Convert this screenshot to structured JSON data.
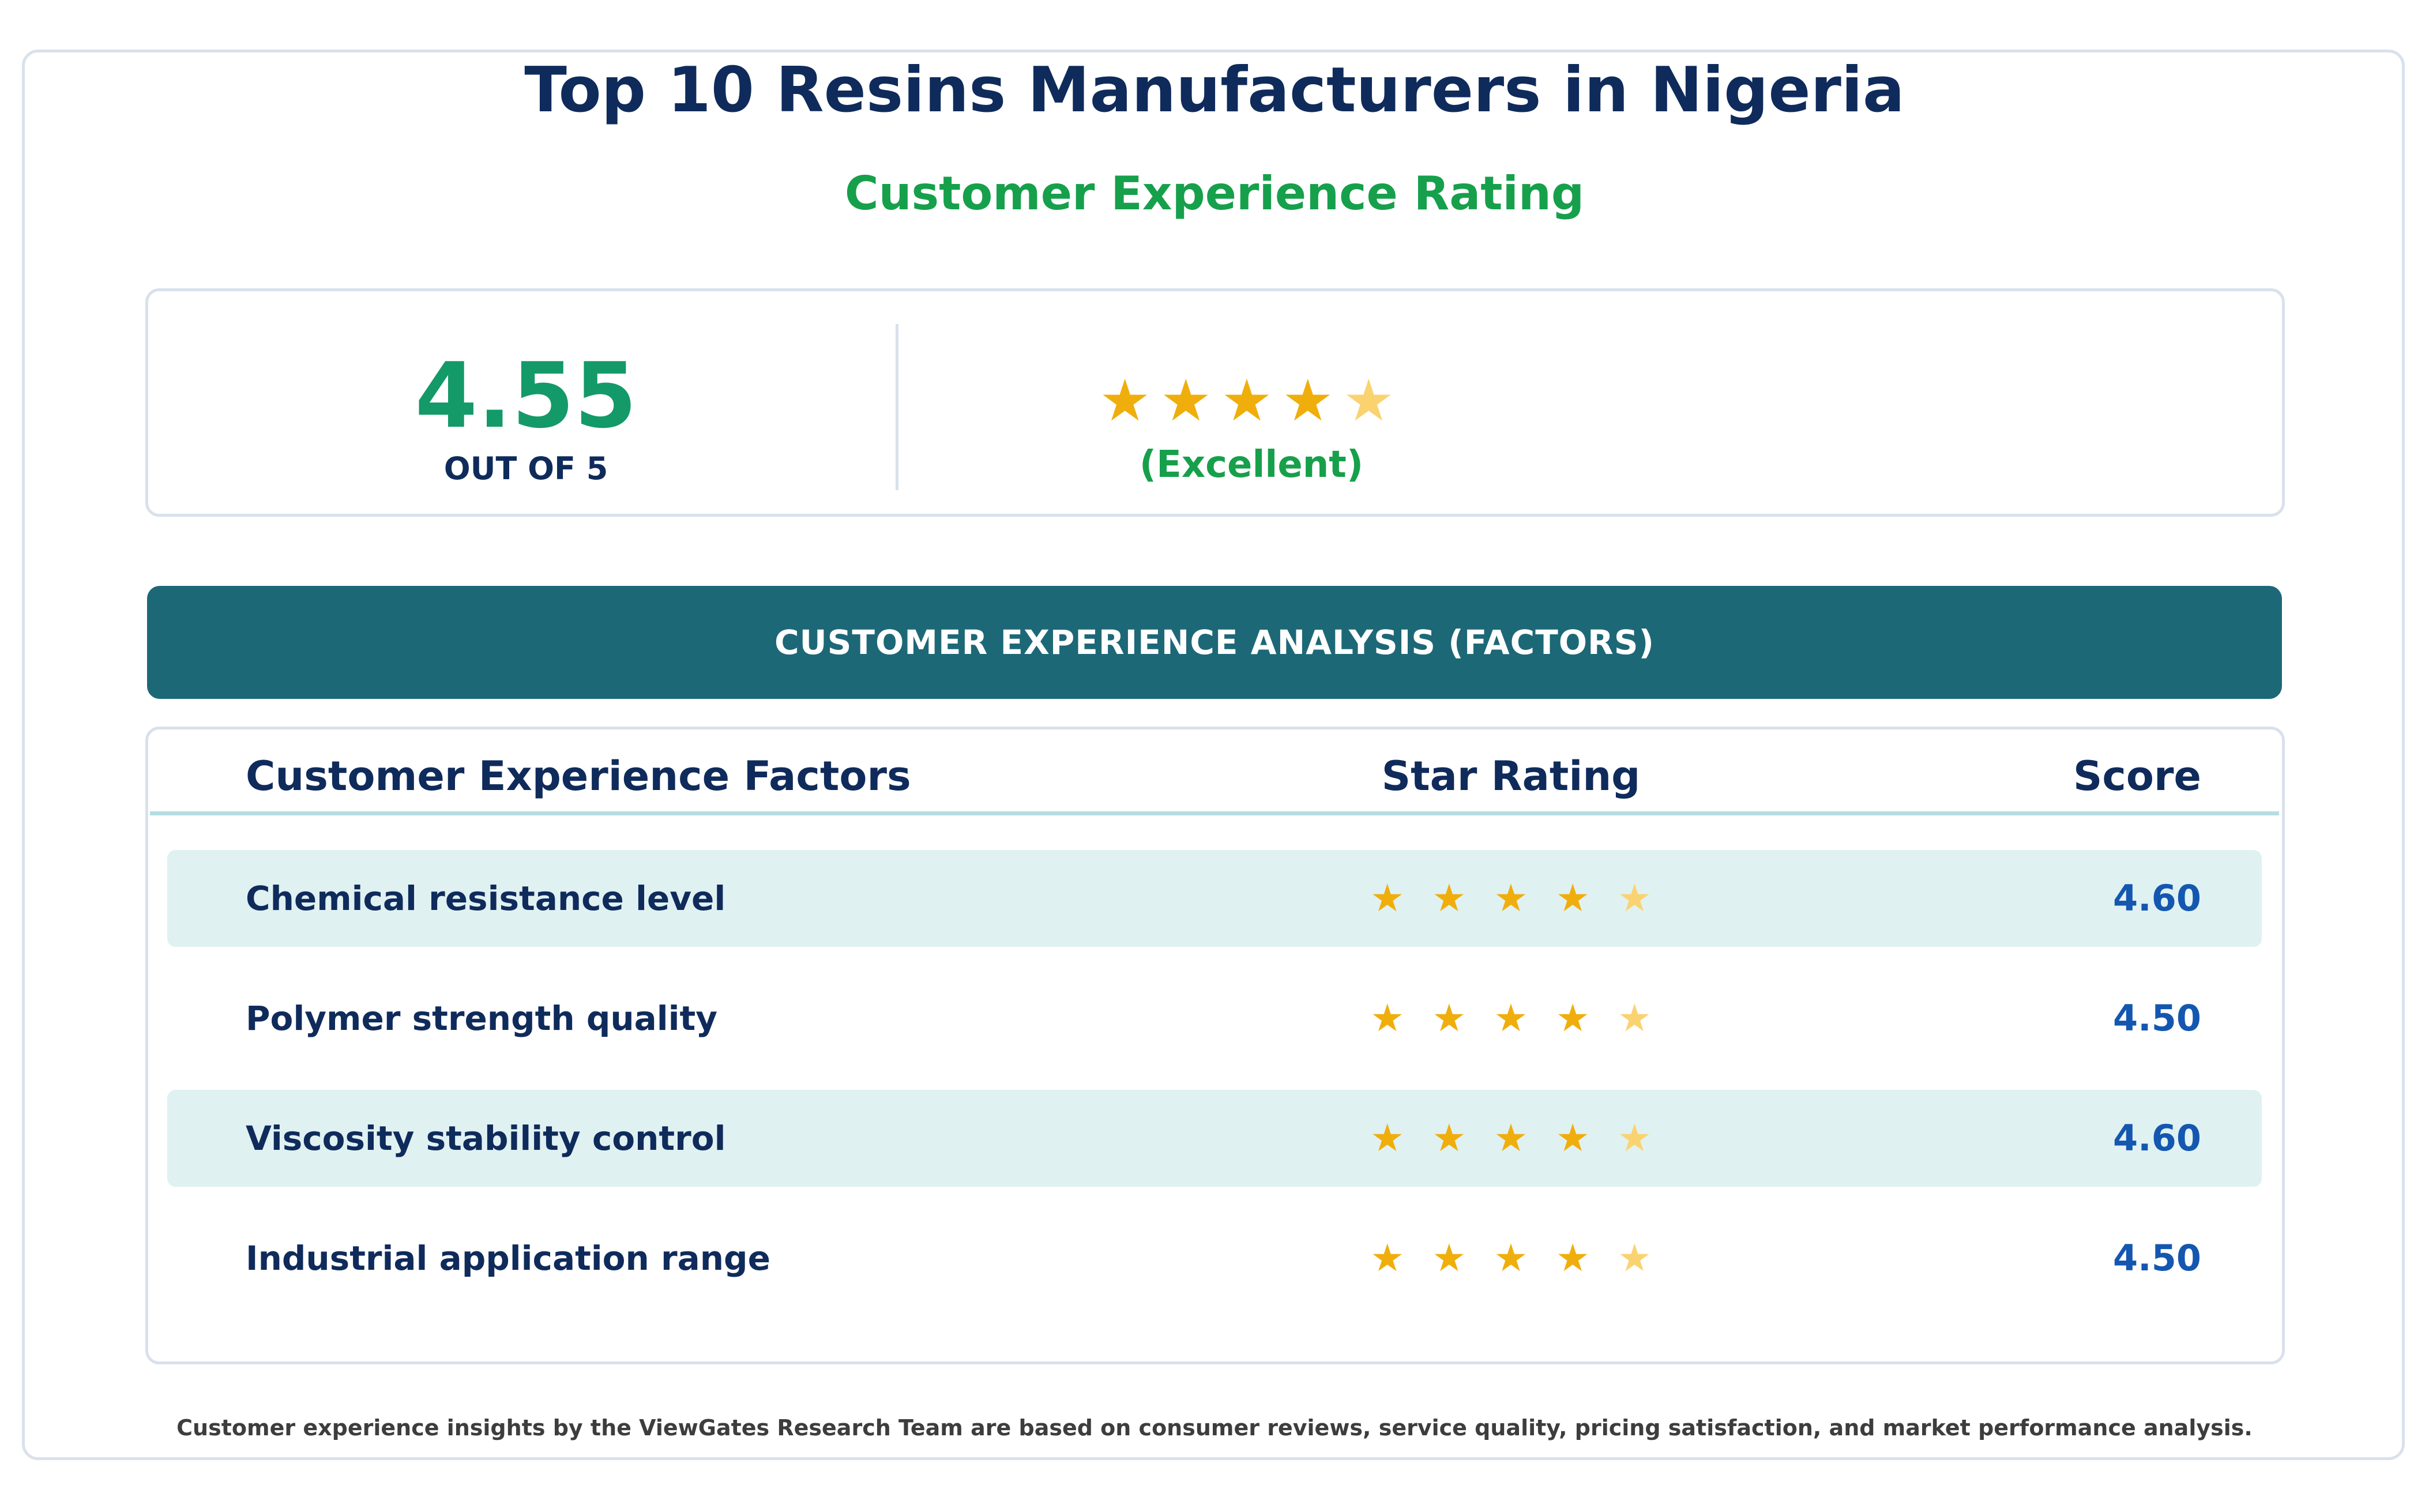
{
  "header": {
    "title": "Top 10 Resins Manufacturers in Nigeria",
    "subtitle": "Customer Experience Rating"
  },
  "summary": {
    "score": "4.55",
    "out_of": "OUT OF 5",
    "stars": "★★★★★",
    "rating_value": 4.55,
    "rating_max": 5,
    "rating_label": "(Excellent)"
  },
  "banner": {
    "label": "CUSTOMER EXPERIENCE ANALYSIS (FACTORS)"
  },
  "table": {
    "columns": [
      "Customer Experience Factors",
      "Star Rating",
      "Score"
    ],
    "rows": [
      {
        "factor": "Chemical resistance level",
        "stars": "★★★★★",
        "rating_value": 4.6,
        "score": "4.60"
      },
      {
        "factor": "Polymer strength quality",
        "stars": "★★★★★",
        "rating_value": 4.5,
        "score": "4.50"
      },
      {
        "factor": "Viscosity stability control",
        "stars": "★★★★★",
        "rating_value": 4.6,
        "score": "4.60"
      },
      {
        "factor": "Industrial application range",
        "stars": "★★★★★",
        "rating_value": 4.5,
        "score": "4.50"
      }
    ]
  },
  "footer": {
    "note": "Customer experience insights by the ViewGates Research Team are based on consumer reviews, service quality, pricing satisfaction, and market performance analysis."
  },
  "colors": {
    "title": "#0f2b5b",
    "accent_green": "#16a04b",
    "score_green": "#139a68",
    "banner_teal": "#1d6877",
    "row_shade": "#e0f1f2",
    "star_full": "#f0ae0c",
    "star_partial": "#fad370",
    "score_blue": "#1457b0"
  }
}
